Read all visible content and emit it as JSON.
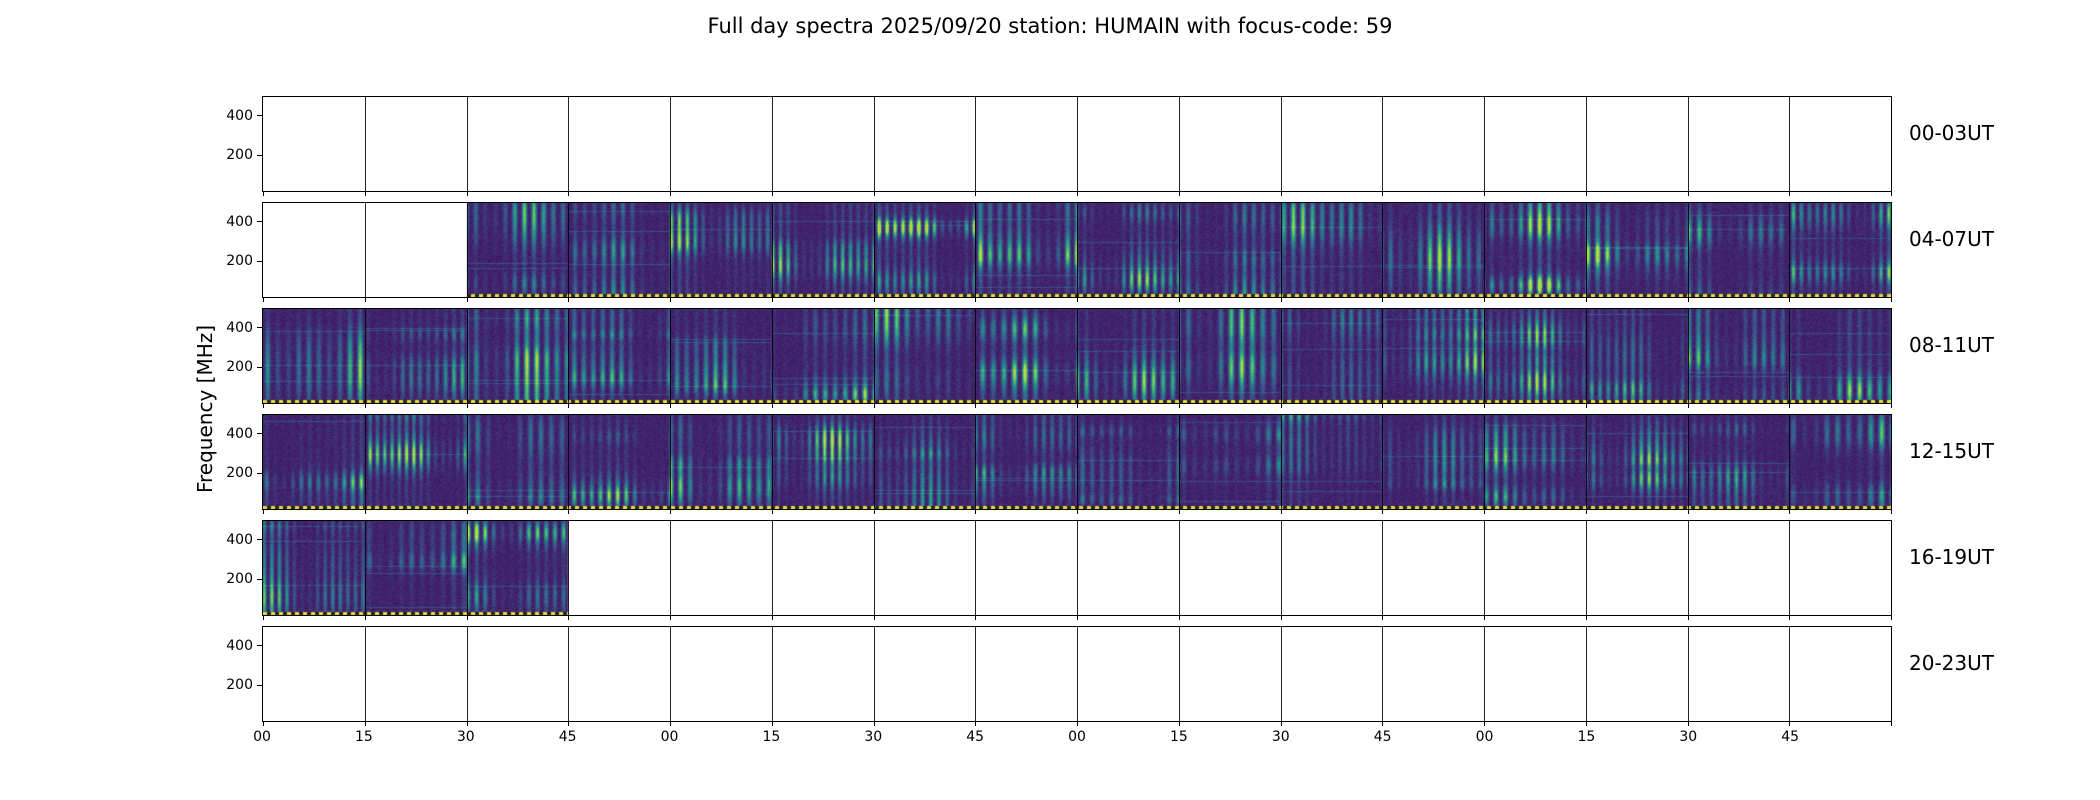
{
  "figure": {
    "title": "Full day spectra 2025/09/20 station: HUMAIN with focus-code: 59",
    "ylabel": "Frequency [MHz]"
  },
  "axes": {
    "ytick_labels": [
      "400",
      "200"
    ],
    "xtick_labels": [
      "00",
      "15",
      "30",
      "45",
      "00",
      "15",
      "30",
      "45",
      "00",
      "15",
      "30",
      "45",
      "00",
      "15",
      "30",
      "45"
    ]
  },
  "colors": {
    "background": "#ffffff",
    "axis": "#000000",
    "colormap": "viridis",
    "spectrogram_base": "#440154",
    "spectrogram_bright": "#21918c",
    "dotted_baseline": "#dcd43c"
  },
  "chart_data": {
    "type": "heatmap",
    "title": "Full day spectra 2025/09/20 station: HUMAIN with focus-code: 59",
    "station": "HUMAIN",
    "date": "2025/09/20",
    "focus_code": "59",
    "ylabel": "Frequency [MHz]",
    "yticks_mhz": [
      200,
      400
    ],
    "x_tick_interval_minutes": 15,
    "hours_per_row": 4,
    "segments_per_row": 16,
    "colormap": "viridis",
    "legend": "none",
    "rows": [
      {
        "time_range": "00-03UT",
        "data_extent": "no data",
        "segments_15min": [
          0,
          0,
          0,
          0,
          0,
          0,
          0,
          0,
          0,
          0,
          0,
          0,
          0,
          0,
          0,
          0
        ]
      },
      {
        "time_range": "04-07UT",
        "data_extent": "04:30 to 08:00",
        "segments_15min": [
          0,
          0,
          1,
          1,
          1,
          1,
          1,
          1,
          1,
          1,
          1,
          1,
          1,
          1,
          1,
          1
        ]
      },
      {
        "time_range": "08-11UT",
        "data_extent": "full block",
        "segments_15min": [
          1,
          1,
          1,
          1,
          1,
          1,
          1,
          1,
          1,
          1,
          1,
          1,
          1,
          1,
          1,
          1
        ]
      },
      {
        "time_range": "12-15UT",
        "data_extent": "full block",
        "segments_15min": [
          1,
          1,
          1,
          1,
          1,
          1,
          1,
          1,
          1,
          1,
          1,
          1,
          1,
          1,
          1,
          1
        ]
      },
      {
        "time_range": "16-19UT",
        "data_extent": "16:00 to 16:45",
        "segments_15min": [
          1,
          1,
          1,
          0,
          0,
          0,
          0,
          0,
          0,
          0,
          0,
          0,
          0,
          0,
          0,
          0
        ]
      },
      {
        "time_range": "20-23UT",
        "data_extent": "no data",
        "segments_15min": [
          0,
          0,
          0,
          0,
          0,
          0,
          0,
          0,
          0,
          0,
          0,
          0,
          0,
          0,
          0,
          0
        ]
      }
    ]
  }
}
